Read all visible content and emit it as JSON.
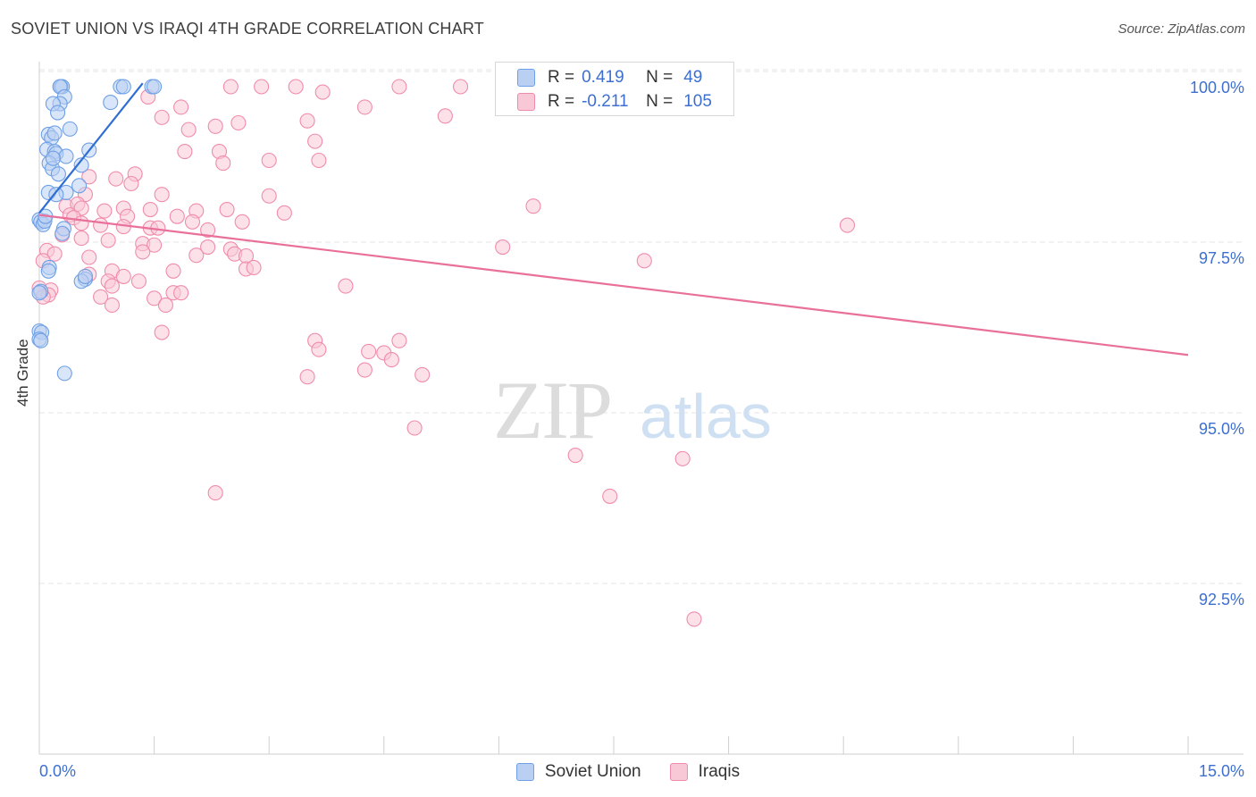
{
  "chart_data": {
    "type": "scatter",
    "title": "SOVIET UNION VS IRAQI 4TH GRADE CORRELATION CHART",
    "source": "Source: ZipAtlas.com",
    "ylabel": "4th Grade",
    "xlabel": "",
    "xlim": [
      0,
      15
    ],
    "ylim": [
      89.8,
      100.7
    ],
    "x_tick_labels": [
      "0.0%",
      "15.0%"
    ],
    "y_ticks": [
      {
        "value": 100.0,
        "label": "100.0%"
      },
      {
        "value": 97.5,
        "label": "97.5%"
      },
      {
        "value": 95.0,
        "label": "95.0%"
      },
      {
        "value": 92.5,
        "label": "92.5%"
      }
    ],
    "watermark": "ZIPatlas",
    "series": [
      {
        "name": "Soviet Union",
        "color": "#6ea0e6",
        "fill": "#b9d0f2",
        "line_color": "#2f6fd1",
        "R": "0.419",
        "N": "49",
        "trend": {
          "x": [
            0.0,
            1.35
          ],
          "y": [
            98.15,
            100.05
          ]
        },
        "points": [
          [
            0.28,
            100.0
          ],
          [
            0.3,
            100.0
          ],
          [
            0.27,
            100.0
          ],
          [
            1.06,
            100.0
          ],
          [
            1.1,
            100.0
          ],
          [
            1.47,
            100.0
          ],
          [
            1.5,
            100.0
          ],
          [
            0.33,
            99.85
          ],
          [
            0.27,
            99.75
          ],
          [
            0.18,
            99.75
          ],
          [
            0.93,
            99.77
          ],
          [
            0.24,
            99.62
          ],
          [
            0.4,
            99.38
          ],
          [
            0.12,
            99.3
          ],
          [
            0.16,
            99.25
          ],
          [
            0.2,
            99.32
          ],
          [
            0.1,
            99.08
          ],
          [
            0.2,
            99.05
          ],
          [
            0.22,
            99.02
          ],
          [
            0.65,
            99.07
          ],
          [
            0.35,
            98.98
          ],
          [
            0.13,
            98.88
          ],
          [
            0.55,
            98.85
          ],
          [
            0.17,
            98.8
          ],
          [
            0.25,
            98.72
          ],
          [
            0.52,
            98.55
          ],
          [
            0.12,
            98.45
          ],
          [
            0.35,
            98.45
          ],
          [
            0.22,
            98.42
          ],
          [
            0.0,
            98.05
          ],
          [
            0.02,
            98.02
          ],
          [
            0.05,
            97.98
          ],
          [
            0.07,
            98.03
          ],
          [
            0.32,
            97.92
          ],
          [
            0.3,
            97.85
          ],
          [
            0.13,
            97.35
          ],
          [
            0.12,
            97.3
          ],
          [
            0.6,
            97.18
          ],
          [
            0.55,
            97.15
          ],
          [
            0.02,
            97.0
          ],
          [
            0.0,
            96.98
          ],
          [
            0.0,
            96.42
          ],
          [
            0.03,
            96.4
          ],
          [
            0.0,
            96.3
          ],
          [
            0.02,
            96.28
          ],
          [
            0.33,
            95.8
          ],
          [
            0.6,
            97.22
          ],
          [
            0.18,
            98.95
          ],
          [
            0.08,
            98.1
          ]
        ]
      },
      {
        "name": "Iraqis",
        "color": "#f08cab",
        "fill": "#f9c8d7",
        "line_color": "#e8709a",
        "R": "-0.211",
        "N": "105",
        "trend": {
          "x": [
            0.0,
            15.0
          ],
          "y": [
            98.12,
            96.07
          ]
        },
        "points": [
          [
            2.5,
            100.0
          ],
          [
            2.9,
            100.0
          ],
          [
            3.35,
            100.0
          ],
          [
            4.7,
            100.0
          ],
          [
            5.5,
            100.0
          ],
          [
            7.6,
            100.0
          ],
          [
            3.7,
            99.92
          ],
          [
            1.42,
            99.85
          ],
          [
            1.85,
            99.7
          ],
          [
            4.25,
            99.7
          ],
          [
            1.6,
            99.55
          ],
          [
            5.3,
            99.57
          ],
          [
            2.3,
            99.42
          ],
          [
            3.5,
            99.5
          ],
          [
            2.6,
            99.47
          ],
          [
            1.95,
            99.37
          ],
          [
            3.6,
            99.2
          ],
          [
            1.9,
            99.05
          ],
          [
            2.35,
            99.05
          ],
          [
            3.0,
            98.92
          ],
          [
            3.65,
            98.92
          ],
          [
            2.4,
            98.88
          ],
          [
            1.25,
            98.72
          ],
          [
            1.0,
            98.65
          ],
          [
            0.65,
            98.68
          ],
          [
            1.2,
            98.58
          ],
          [
            1.6,
            98.42
          ],
          [
            0.6,
            98.42
          ],
          [
            3.0,
            98.4
          ],
          [
            0.35,
            98.25
          ],
          [
            0.5,
            98.28
          ],
          [
            0.55,
            98.22
          ],
          [
            1.1,
            98.22
          ],
          [
            0.85,
            98.18
          ],
          [
            1.45,
            98.2
          ],
          [
            2.05,
            98.18
          ],
          [
            2.45,
            98.2
          ],
          [
            6.45,
            98.25
          ],
          [
            3.2,
            98.15
          ],
          [
            0.4,
            98.12
          ],
          [
            0.45,
            98.08
          ],
          [
            1.15,
            98.1
          ],
          [
            1.8,
            98.1
          ],
          [
            2.0,
            98.02
          ],
          [
            2.65,
            98.02
          ],
          [
            0.55,
            98.0
          ],
          [
            0.8,
            97.97
          ],
          [
            1.1,
            97.95
          ],
          [
            1.45,
            97.93
          ],
          [
            1.55,
            97.93
          ],
          [
            2.2,
            97.9
          ],
          [
            10.55,
            97.97
          ],
          [
            0.3,
            97.83
          ],
          [
            0.55,
            97.78
          ],
          [
            0.9,
            97.75
          ],
          [
            1.35,
            97.7
          ],
          [
            1.5,
            97.68
          ],
          [
            2.2,
            97.65
          ],
          [
            2.5,
            97.62
          ],
          [
            6.05,
            97.65
          ],
          [
            0.1,
            97.6
          ],
          [
            0.2,
            97.55
          ],
          [
            1.35,
            97.58
          ],
          [
            2.05,
            97.53
          ],
          [
            2.55,
            97.55
          ],
          [
            0.65,
            97.5
          ],
          [
            2.7,
            97.52
          ],
          [
            0.05,
            97.45
          ],
          [
            7.9,
            97.45
          ],
          [
            2.7,
            97.33
          ],
          [
            2.8,
            97.35
          ],
          [
            1.75,
            97.3
          ],
          [
            0.65,
            97.25
          ],
          [
            0.95,
            97.3
          ],
          [
            1.1,
            97.22
          ],
          [
            0.9,
            97.15
          ],
          [
            1.3,
            97.15
          ],
          [
            0.95,
            97.08
          ],
          [
            4.0,
            97.08
          ],
          [
            0.0,
            97.05
          ],
          [
            0.15,
            97.02
          ],
          [
            0.12,
            96.95
          ],
          [
            0.05,
            96.92
          ],
          [
            1.75,
            96.98
          ],
          [
            1.85,
            96.98
          ],
          [
            1.5,
            96.9
          ],
          [
            0.8,
            96.92
          ],
          [
            0.95,
            96.8
          ],
          [
            1.65,
            96.8
          ],
          [
            1.6,
            96.4
          ],
          [
            3.6,
            96.28
          ],
          [
            4.7,
            96.28
          ],
          [
            3.65,
            96.15
          ],
          [
            4.5,
            96.1
          ],
          [
            4.3,
            96.12
          ],
          [
            4.6,
            96.0
          ],
          [
            4.25,
            95.85
          ],
          [
            5.0,
            95.78
          ],
          [
            3.5,
            95.75
          ],
          [
            4.9,
            95.0
          ],
          [
            7.0,
            94.6
          ],
          [
            8.4,
            94.55
          ],
          [
            7.45,
            94.0
          ],
          [
            2.3,
            94.05
          ],
          [
            8.55,
            92.2
          ]
        ]
      }
    ]
  }
}
